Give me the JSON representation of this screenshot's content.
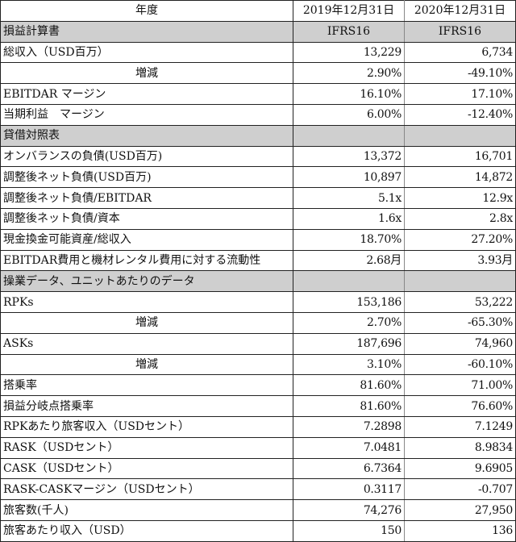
{
  "header": {
    "label": "年度",
    "col1": "2019年12月31日",
    "col2": "2020年12月31日"
  },
  "rows": [
    {
      "type": "section",
      "label": "損益計算書",
      "v1": "IFRS16",
      "v2": "IFRS16"
    },
    {
      "type": "data",
      "label": "総収入（USD百万）",
      "v1": "13,229",
      "v2": "6,734"
    },
    {
      "type": "change",
      "label": "増減",
      "v1": "2.90%",
      "v2": "-49.10%"
    },
    {
      "type": "data",
      "label": "EBITDAR マージン",
      "v1": "16.10%",
      "v2": "17.10%"
    },
    {
      "type": "data",
      "label": "当期利益　マージン",
      "v1": "6.00%",
      "v2": "-12.40%"
    },
    {
      "type": "section",
      "label": "貸借対照表",
      "v1": "",
      "v2": ""
    },
    {
      "type": "data",
      "label": "オンバランスの負債(USD百万)",
      "v1": "13,372",
      "v2": "16,701"
    },
    {
      "type": "data",
      "label": "調整後ネット負債(USD百万)",
      "v1": "10,897",
      "v2": "14,872"
    },
    {
      "type": "data",
      "label": "調整後ネット負債/EBITDAR",
      "v1": "5.1x",
      "v2": "12.9x"
    },
    {
      "type": "data",
      "label": "調整後ネット負債/資本",
      "v1": "1.6x",
      "v2": "2.8x"
    },
    {
      "type": "data",
      "label": "現金換金可能資産/総収入",
      "v1": "18.70%",
      "v2": "27.20%"
    },
    {
      "type": "data",
      "label": "EBITDAR費用と機材レンタル費用に対する流動性",
      "v1": "2.68月",
      "v2": "3.93月"
    },
    {
      "type": "section",
      "label": "操業データ、ユニットあたりのデータ",
      "v1": "",
      "v2": ""
    },
    {
      "type": "data",
      "label": "RPKs",
      "v1": "153,186",
      "v2": "53,222"
    },
    {
      "type": "change",
      "label": "増減",
      "v1": "2.70%",
      "v2": "-65.30%"
    },
    {
      "type": "data",
      "label": "ASKs",
      "v1": "187,696",
      "v2": "74,960"
    },
    {
      "type": "change",
      "label": "増減",
      "v1": "3.10%",
      "v2": "-60.10%"
    },
    {
      "type": "data",
      "label": "搭乗率",
      "v1": "81.60%",
      "v2": "71.00%"
    },
    {
      "type": "data",
      "label": "損益分岐点搭乗率",
      "v1": "81.60%",
      "v2": "76.60%"
    },
    {
      "type": "data",
      "label": "RPKあたり旅客収入（USDセント）",
      "v1": "7.2898",
      "v2": "7.1249"
    },
    {
      "type": "data",
      "label": "RASK（USDセント）",
      "v1": "7.0481",
      "v2": "8.9834"
    },
    {
      "type": "data",
      "label": "CASK（USDセント）",
      "v1": "6.7364",
      "v2": "9.6905"
    },
    {
      "type": "data",
      "label": "RASK-CASKマージン（USDセント）",
      "v1": "0.3117",
      "v2": "-0.707"
    },
    {
      "type": "data",
      "label": "旅客数(千人)",
      "v1": "74,276",
      "v2": "27,950"
    },
    {
      "type": "data",
      "label": "旅客あたり収入（USD）",
      "v1": "150",
      "v2": "136"
    }
  ],
  "colors": {
    "section_bg": "#cfcfcf",
    "border": "#222222"
  }
}
